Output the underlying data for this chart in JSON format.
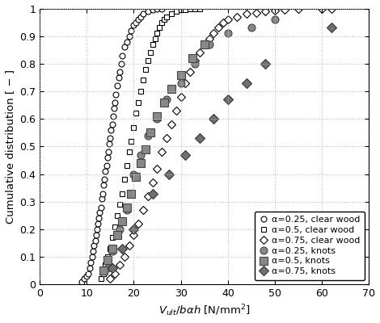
{
  "xlabel": "$V_{ult}/b\\alpha h$ [N/mm$^2$]",
  "ylabel": "Cumulative distribution [ − ]",
  "xlim": [
    0,
    70
  ],
  "ylim": [
    0,
    1.0
  ],
  "xticks": [
    0,
    10,
    20,
    30,
    40,
    50,
    60,
    70
  ],
  "yticks": [
    0.0,
    0.1,
    0.2,
    0.3,
    0.4,
    0.5,
    0.6,
    0.7,
    0.8,
    0.9,
    1.0
  ],
  "series": [
    {
      "label": "α=0.25, clear wood",
      "marker": "o",
      "facecolor": "white",
      "edgecolor": "black",
      "markersize": 5,
      "x": [
        9.0,
        9.5,
        10.0,
        10.3,
        10.6,
        10.9,
        11.1,
        11.4,
        11.6,
        11.8,
        12.0,
        12.2,
        12.4,
        12.6,
        12.8,
        13.0,
        13.2,
        13.4,
        13.6,
        13.8,
        14.0,
        14.2,
        14.4,
        14.6,
        14.8,
        15.0,
        15.2,
        15.4,
        15.6,
        15.8,
        16.0,
        16.2,
        16.5,
        16.8,
        17.0,
        17.3,
        17.6,
        18.0,
        18.5,
        19.0,
        19.5,
        20.0,
        20.5,
        21.0,
        21.5,
        22.0,
        23.0,
        24.0,
        25.0,
        26.0
      ],
      "y": [
        0.01,
        0.02,
        0.03,
        0.04,
        0.06,
        0.08,
        0.1,
        0.12,
        0.14,
        0.16,
        0.18,
        0.2,
        0.22,
        0.24,
        0.26,
        0.28,
        0.31,
        0.33,
        0.36,
        0.38,
        0.41,
        0.43,
        0.46,
        0.48,
        0.51,
        0.53,
        0.56,
        0.58,
        0.61,
        0.64,
        0.66,
        0.69,
        0.72,
        0.75,
        0.77,
        0.8,
        0.83,
        0.86,
        0.88,
        0.9,
        0.92,
        0.94,
        0.95,
        0.96,
        0.97,
        0.98,
        0.99,
        0.995,
        0.998,
        1.0
      ]
    },
    {
      "label": "α=0.5, clear wood",
      "marker": "s",
      "facecolor": "white",
      "edgecolor": "black",
      "markersize": 5,
      "x": [
        13.0,
        13.5,
        14.0,
        14.5,
        15.0,
        15.5,
        16.0,
        16.5,
        17.0,
        17.5,
        18.0,
        18.5,
        19.0,
        19.5,
        20.0,
        20.5,
        21.0,
        21.5,
        22.0,
        22.5,
        23.0,
        23.5,
        24.0,
        24.5,
        25.0,
        25.5,
        26.0,
        26.5,
        27.0,
        28.0,
        29.0,
        30.0,
        31.0,
        32.0,
        33.0,
        34.0
      ],
      "y": [
        0.02,
        0.04,
        0.07,
        0.1,
        0.13,
        0.17,
        0.21,
        0.25,
        0.29,
        0.33,
        0.38,
        0.43,
        0.48,
        0.52,
        0.57,
        0.62,
        0.66,
        0.7,
        0.74,
        0.78,
        0.81,
        0.84,
        0.87,
        0.89,
        0.91,
        0.93,
        0.95,
        0.96,
        0.97,
        0.98,
        0.99,
        0.995,
        0.997,
        0.999,
        1.0,
        1.0
      ]
    },
    {
      "label": "α=0.75, clear wood",
      "marker": "D",
      "facecolor": "white",
      "edgecolor": "black",
      "markersize": 5,
      "x": [
        15.0,
        16.0,
        17.0,
        18.0,
        19.0,
        20.0,
        21.0,
        22.0,
        23.0,
        24.0,
        25.0,
        26.0,
        27.0,
        28.0,
        29.0,
        30.0,
        31.0,
        32.0,
        33.0,
        34.0,
        35.0,
        36.0,
        37.0,
        38.0,
        39.0,
        40.0,
        42.0,
        44.0,
        46.0,
        48.0,
        50.0,
        52.0,
        55.0,
        60.0,
        62.0
      ],
      "y": [
        0.02,
        0.04,
        0.07,
        0.1,
        0.14,
        0.18,
        0.22,
        0.27,
        0.32,
        0.37,
        0.42,
        0.48,
        0.53,
        0.58,
        0.63,
        0.68,
        0.73,
        0.77,
        0.81,
        0.84,
        0.87,
        0.89,
        0.91,
        0.93,
        0.95,
        0.96,
        0.97,
        0.98,
        0.985,
        0.99,
        0.993,
        0.996,
        0.998,
        1.0,
        1.0
      ]
    },
    {
      "label": "α=0.25, knots",
      "marker": "o",
      "facecolor": "#888888",
      "edgecolor": "#444444",
      "markersize": 6.5,
      "x": [
        14.5,
        15.5,
        17.0,
        18.5,
        20.0,
        21.5,
        23.0,
        25.0,
        27.0,
        30.0,
        33.0,
        36.0,
        40.0,
        45.0,
        50.0
      ],
      "y": [
        0.06,
        0.12,
        0.2,
        0.27,
        0.4,
        0.47,
        0.54,
        0.6,
        0.67,
        0.73,
        0.8,
        0.87,
        0.91,
        0.93,
        0.96
      ]
    },
    {
      "label": "α=0.5, knots",
      "marker": "s",
      "facecolor": "#888888",
      "edgecolor": "#444444",
      "markersize": 6.5,
      "x": [
        13.5,
        14.5,
        15.5,
        16.5,
        17.5,
        18.5,
        19.5,
        20.5,
        21.5,
        22.5,
        23.5,
        25.0,
        26.5,
        28.0,
        30.0,
        32.5,
        35.0
      ],
      "y": [
        0.05,
        0.09,
        0.13,
        0.18,
        0.23,
        0.28,
        0.33,
        0.39,
        0.44,
        0.49,
        0.55,
        0.61,
        0.66,
        0.71,
        0.76,
        0.82,
        0.87
      ]
    },
    {
      "label": "α=0.75, knots",
      "marker": "D",
      "facecolor": "#707070",
      "edgecolor": "#333333",
      "markersize": 6.5,
      "x": [
        15.5,
        17.5,
        20.0,
        24.0,
        27.5,
        31.0,
        34.0,
        37.0,
        40.0,
        44.0,
        48.0,
        62.0
      ],
      "y": [
        0.06,
        0.13,
        0.2,
        0.33,
        0.4,
        0.47,
        0.53,
        0.6,
        0.67,
        0.73,
        0.8,
        0.93
      ]
    }
  ],
  "legend_loc": "lower right",
  "grid_color": "#bbbbbb",
  "grid_style": ":"
}
